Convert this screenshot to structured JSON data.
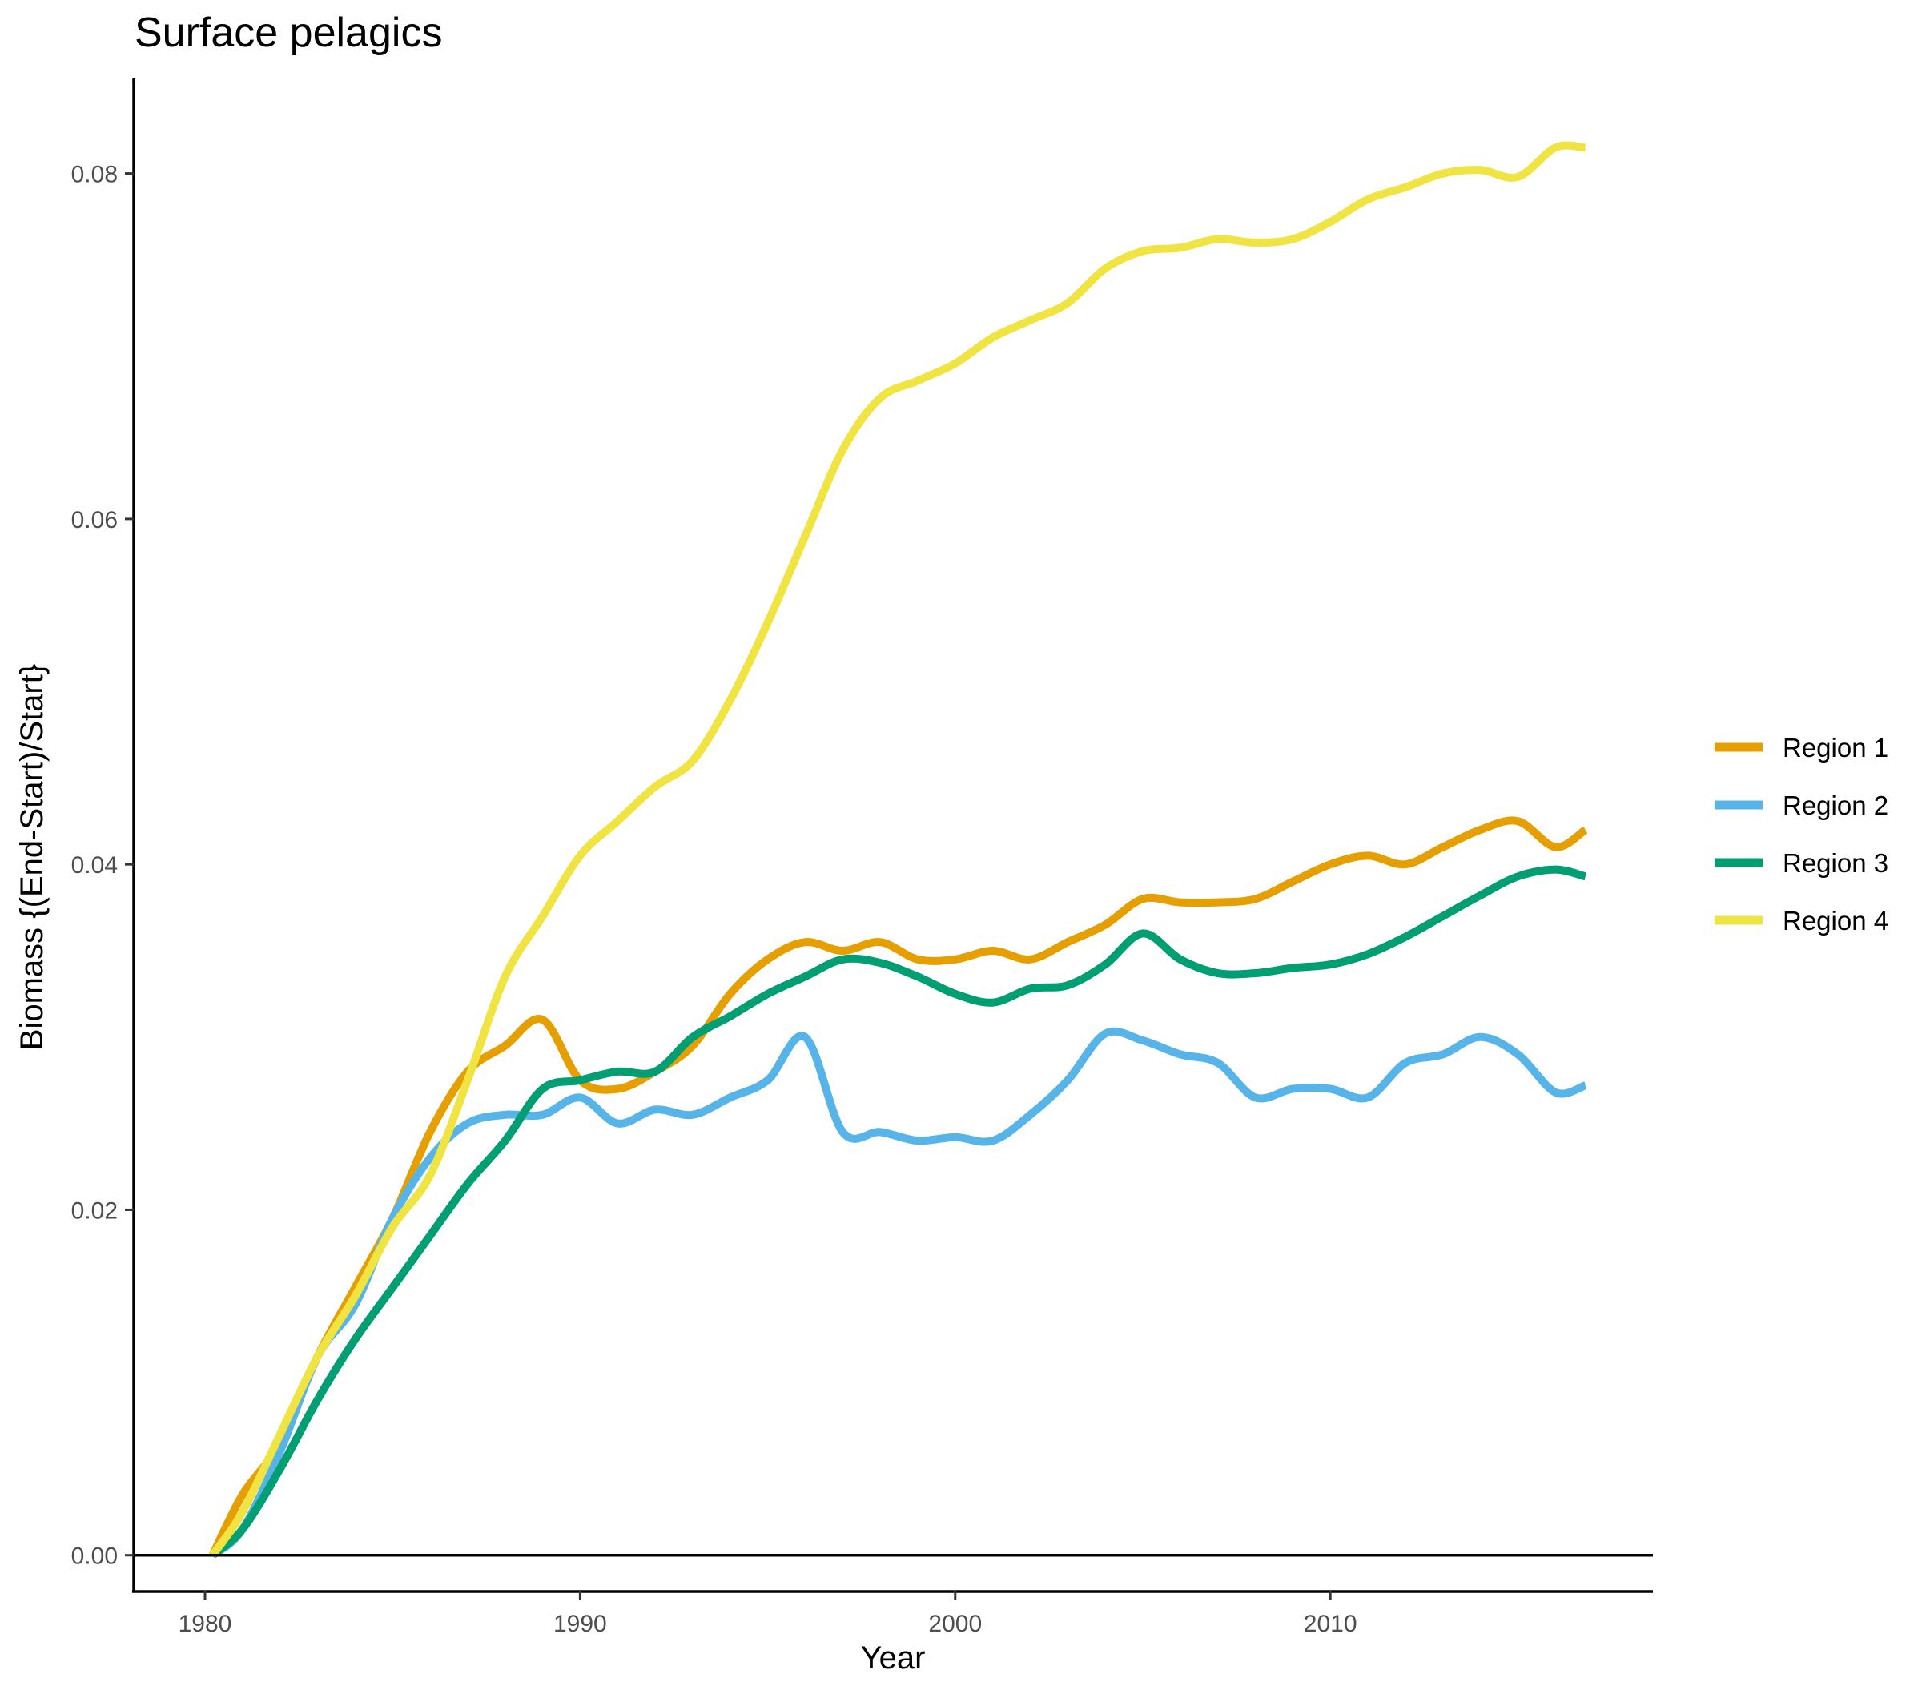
{
  "chart_data": {
    "type": "line",
    "title": "Surface pelagics",
    "xlabel": "Year",
    "ylabel": "Biomass {(End-Start)/Start}",
    "xlim": [
      1978.1,
      2018.6
    ],
    "ylim": [
      -0.0021,
      0.0855
    ],
    "x_ticks": [
      1980,
      1990,
      2000,
      2010
    ],
    "x_tick_labels": [
      "1980",
      "1990",
      "2000",
      "2010"
    ],
    "y_ticks": [
      0,
      0.02,
      0.04,
      0.06,
      0.08
    ],
    "y_tick_labels": [
      "0.00",
      "0.02",
      "0.04",
      "0.06",
      "0.08"
    ],
    "reference_line_y": 0,
    "grid": false,
    "legend_position": "right",
    "x": [
      1980.2,
      1981,
      1982,
      1983,
      1984,
      1985,
      1986,
      1987,
      1988,
      1989,
      1990,
      1991,
      1992,
      1993,
      1994,
      1995,
      1996,
      1997,
      1998,
      1999,
      2000,
      2001,
      2002,
      2003,
      2004,
      2005,
      2006,
      2007,
      2008,
      2009,
      2010,
      2011,
      2012,
      2013,
      2014,
      2015,
      2016,
      2016.8
    ],
    "series": [
      {
        "name": "Region 1",
        "color": "#E69F00",
        "values": [
          0.0,
          0.0035,
          0.0065,
          0.0115,
          0.0155,
          0.0195,
          0.0245,
          0.028,
          0.0295,
          0.031,
          0.0275,
          0.027,
          0.028,
          0.0295,
          0.0325,
          0.0345,
          0.0355,
          0.035,
          0.0355,
          0.0345,
          0.0345,
          0.035,
          0.0345,
          0.0355,
          0.0365,
          0.038,
          0.0378,
          0.0378,
          0.038,
          0.039,
          0.04,
          0.0405,
          0.04,
          0.041,
          0.042,
          0.0425,
          0.041,
          0.042
        ]
      },
      {
        "name": "Region 2",
        "color": "#56B4E9",
        "values": [
          0.0,
          0.0015,
          0.006,
          0.0115,
          0.0145,
          0.0195,
          0.023,
          0.025,
          0.0255,
          0.0255,
          0.0265,
          0.025,
          0.0258,
          0.0255,
          0.0265,
          0.0275,
          0.03,
          0.0245,
          0.0245,
          0.024,
          0.0242,
          0.024,
          0.0255,
          0.0275,
          0.0302,
          0.0298,
          0.029,
          0.0285,
          0.0265,
          0.027,
          0.027,
          0.0265,
          0.0285,
          0.029,
          0.03,
          0.029,
          0.0268,
          0.0272
        ]
      },
      {
        "name": "Region 3",
        "color": "#009E73",
        "values": [
          0.0,
          0.0015,
          0.005,
          0.009,
          0.0125,
          0.0155,
          0.0185,
          0.0215,
          0.024,
          0.027,
          0.0275,
          0.028,
          0.028,
          0.03,
          0.0312,
          0.0325,
          0.0335,
          0.0345,
          0.0343,
          0.0335,
          0.0325,
          0.032,
          0.0328,
          0.033,
          0.0342,
          0.036,
          0.0345,
          0.0337,
          0.0337,
          0.034,
          0.0342,
          0.0348,
          0.0358,
          0.037,
          0.0382,
          0.0393,
          0.0397,
          0.0393
        ]
      },
      {
        "name": "Region 4",
        "color": "#F0E442",
        "values": [
          0.0,
          0.0025,
          0.007,
          0.0115,
          0.015,
          0.019,
          0.022,
          0.0275,
          0.0335,
          0.037,
          0.0405,
          0.0425,
          0.0445,
          0.046,
          0.0495,
          0.054,
          0.059,
          0.064,
          0.067,
          0.068,
          0.069,
          0.0705,
          0.0715,
          0.0725,
          0.0745,
          0.0755,
          0.0757,
          0.0762,
          0.076,
          0.0762,
          0.0772,
          0.0785,
          0.0792,
          0.08,
          0.0802,
          0.0798,
          0.0815,
          0.0815
        ]
      }
    ]
  }
}
